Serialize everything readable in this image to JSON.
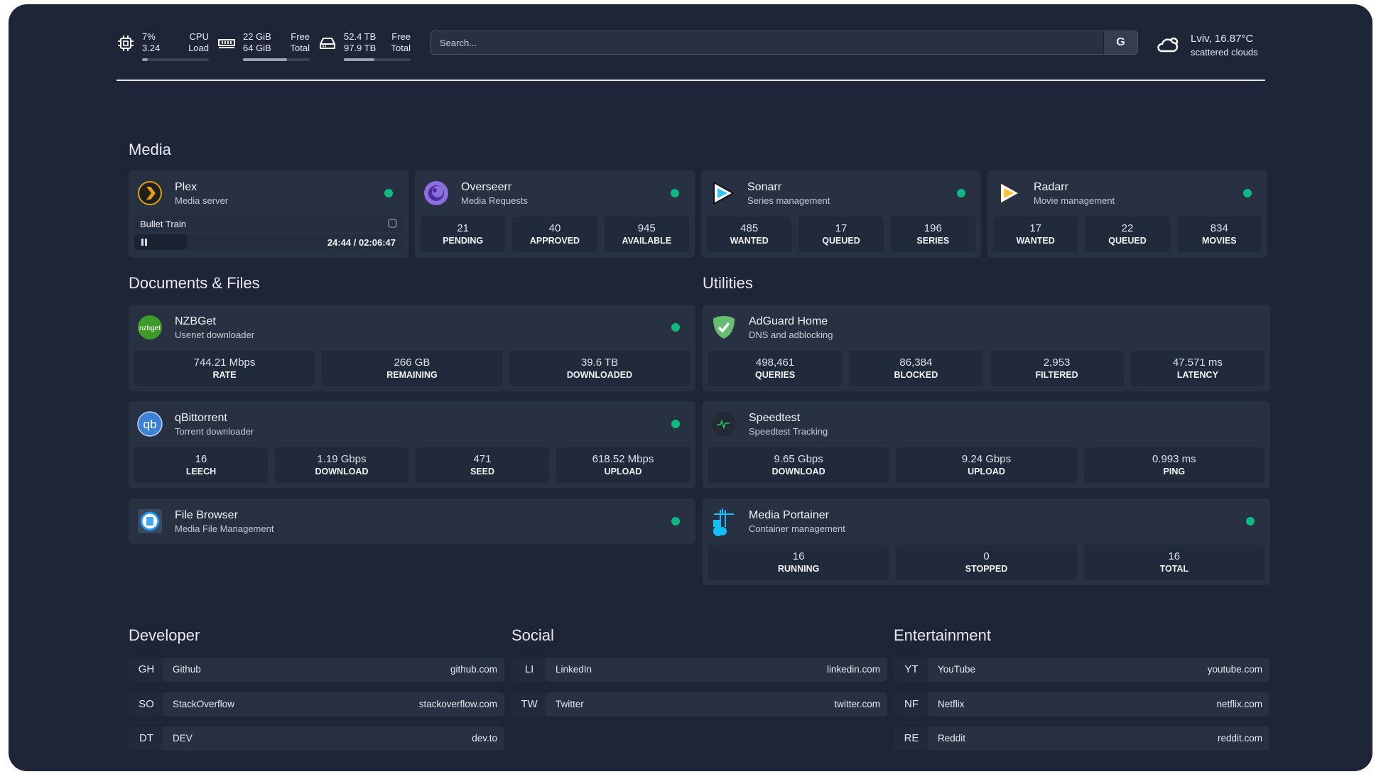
{
  "header": {
    "cpu": {
      "icon": "cpu-icon",
      "value1": "7%",
      "value2": "3.24",
      "label1": "CPU",
      "label2": "Load",
      "percent": 7
    },
    "memory": {
      "icon": "memory-icon",
      "value1": "22 GiB",
      "value2": "64 GiB",
      "label1": "Free",
      "label2": "Total",
      "percent": 66
    },
    "disk": {
      "icon": "hard-drive-icon",
      "value1": "52.4 TB",
      "value2": "97.9 TB",
      "label1": "Free",
      "label2": "Total",
      "percent": 46
    },
    "search": {
      "placeholder": "Search...",
      "provider": "G"
    },
    "weather": {
      "icon": "cloud-icon",
      "location_temp": "Lviv, 16.87°C",
      "condition": "scattered clouds"
    }
  },
  "colors": {
    "background": "#1e2537",
    "card": "#283142",
    "status_online": "#10b981"
  },
  "sections": {
    "media": "Media",
    "documents": "Documents & Files",
    "utilities": "Utilities",
    "developer": "Developer",
    "social": "Social",
    "entertainment": "Entertainment"
  },
  "media": [
    {
      "name": "Plex",
      "desc": "Media server",
      "icon": "plex-icon",
      "status": "online",
      "now_playing": {
        "title": "Bullet Train",
        "time": "24:44 / 02:06:47",
        "progress": 0.195
      }
    },
    {
      "name": "Overseerr",
      "desc": "Media Requests",
      "icon": "overseerr-icon",
      "status": "online",
      "stats": [
        {
          "v": "21",
          "l": "PENDING"
        },
        {
          "v": "40",
          "l": "APPROVED"
        },
        {
          "v": "945",
          "l": "AVAILABLE"
        }
      ]
    },
    {
      "name": "Sonarr",
      "desc": "Series management",
      "icon": "sonarr-icon",
      "status": "online",
      "stats": [
        {
          "v": "485",
          "l": "WANTED"
        },
        {
          "v": "17",
          "l": "QUEUED"
        },
        {
          "v": "196",
          "l": "SERIES"
        }
      ]
    },
    {
      "name": "Radarr",
      "desc": "Movie management",
      "icon": "radarr-icon",
      "status": "online",
      "stats": [
        {
          "v": "17",
          "l": "WANTED"
        },
        {
          "v": "22",
          "l": "QUEUED"
        },
        {
          "v": "834",
          "l": "MOVIES"
        }
      ]
    }
  ],
  "documents": [
    {
      "name": "NZBGet",
      "desc": "Usenet downloader",
      "icon": "nzbget-icon",
      "status": "online",
      "stats": [
        {
          "v": "744.21 Mbps",
          "l": "RATE"
        },
        {
          "v": "266 GB",
          "l": "REMAINING"
        },
        {
          "v": "39.6 TB",
          "l": "DOWNLOADED"
        }
      ]
    },
    {
      "name": "qBittorrent",
      "desc": "Torrent downloader",
      "icon": "qbittorrent-icon",
      "status": "online",
      "stats": [
        {
          "v": "16",
          "l": "LEECH"
        },
        {
          "v": "1.19 Gbps",
          "l": "DOWNLOAD"
        },
        {
          "v": "471",
          "l": "SEED"
        },
        {
          "v": "618.52 Mbps",
          "l": "UPLOAD"
        }
      ]
    },
    {
      "name": "File Browser",
      "desc": "Media File Management",
      "icon": "file-browser-icon",
      "status": "online"
    }
  ],
  "utilities": [
    {
      "name": "AdGuard Home",
      "desc": "DNS and adblocking",
      "icon": "adguard-icon",
      "stats": [
        {
          "v": "498,461",
          "l": "QUERIES"
        },
        {
          "v": "86,384",
          "l": "BLOCKED"
        },
        {
          "v": "2,953",
          "l": "FILTERED"
        },
        {
          "v": "47.571 ms",
          "l": "LATENCY"
        }
      ]
    },
    {
      "name": "Speedtest",
      "desc": "Speedtest Tracking",
      "icon": "speedtest-icon",
      "stats": [
        {
          "v": "9.65 Gbps",
          "l": "DOWNLOAD"
        },
        {
          "v": "9.24 Gbps",
          "l": "UPLOAD"
        },
        {
          "v": "0.993 ms",
          "l": "PING"
        }
      ]
    },
    {
      "name": "Media Portainer",
      "desc": "Container management",
      "icon": "portainer-icon",
      "status": "online",
      "stats": [
        {
          "v": "16",
          "l": "RUNNING"
        },
        {
          "v": "0",
          "l": "STOPPED"
        },
        {
          "v": "16",
          "l": "TOTAL"
        }
      ]
    }
  ],
  "bookmarks": {
    "developer": [
      {
        "abbr": "GH",
        "name": "Github",
        "url": "github.com"
      },
      {
        "abbr": "SO",
        "name": "StackOverflow",
        "url": "stackoverflow.com"
      },
      {
        "abbr": "DT",
        "name": "DEV",
        "url": "dev.to"
      }
    ],
    "social": [
      {
        "abbr": "LI",
        "name": "LinkedIn",
        "url": "linkedin.com"
      },
      {
        "abbr": "TW",
        "name": "Twitter",
        "url": "twitter.com"
      }
    ],
    "entertainment": [
      {
        "abbr": "YT",
        "name": "YouTube",
        "url": "youtube.com"
      },
      {
        "abbr": "NF",
        "name": "Netflix",
        "url": "netflix.com"
      },
      {
        "abbr": "RE",
        "name": "Reddit",
        "url": "reddit.com"
      }
    ]
  }
}
